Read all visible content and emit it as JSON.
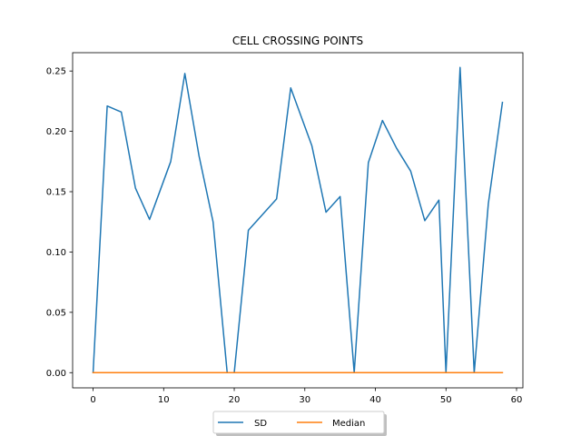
{
  "chart_data": {
    "type": "line",
    "title": "CELL CROSSING POINTS",
    "xlabel": "",
    "ylabel": "",
    "xlim": [
      -2.9,
      60.9
    ],
    "ylim": [
      -0.0126,
      0.2652
    ],
    "xticks": [
      0,
      10,
      20,
      30,
      40,
      50,
      60
    ],
    "yticks": [
      0.0,
      0.05,
      0.1,
      0.15,
      0.2,
      0.25
    ],
    "xtick_labels": [
      "0",
      "10",
      "20",
      "30",
      "40",
      "50",
      "60"
    ],
    "ytick_labels": [
      "0.00",
      "0.05",
      "0.10",
      "0.15",
      "0.20",
      "0.25"
    ],
    "grid": false,
    "legend_position": "bottom-center",
    "series": [
      {
        "name": "SD",
        "color": "#1f77b4",
        "x": [
          0,
          2,
          4,
          6,
          8,
          11,
          13,
          15,
          17,
          19,
          20,
          22,
          24,
          26,
          28,
          31,
          33,
          35,
          37,
          39,
          41,
          43,
          45,
          47,
          49,
          50,
          52,
          54,
          56,
          58
        ],
        "y": [
          0.0,
          0.221,
          0.216,
          0.153,
          0.127,
          0.175,
          0.248,
          0.18,
          0.125,
          0.0,
          0.0,
          0.118,
          0.131,
          0.144,
          0.236,
          0.188,
          0.133,
          0.146,
          0.0,
          0.174,
          0.209,
          0.186,
          0.167,
          0.126,
          0.143,
          0.0,
          0.253,
          0.0,
          0.14,
          0.224
        ]
      },
      {
        "name": "Median",
        "color": "#ff7f0e",
        "x": [
          0,
          58
        ],
        "y": [
          0.0,
          0.0
        ]
      }
    ]
  }
}
